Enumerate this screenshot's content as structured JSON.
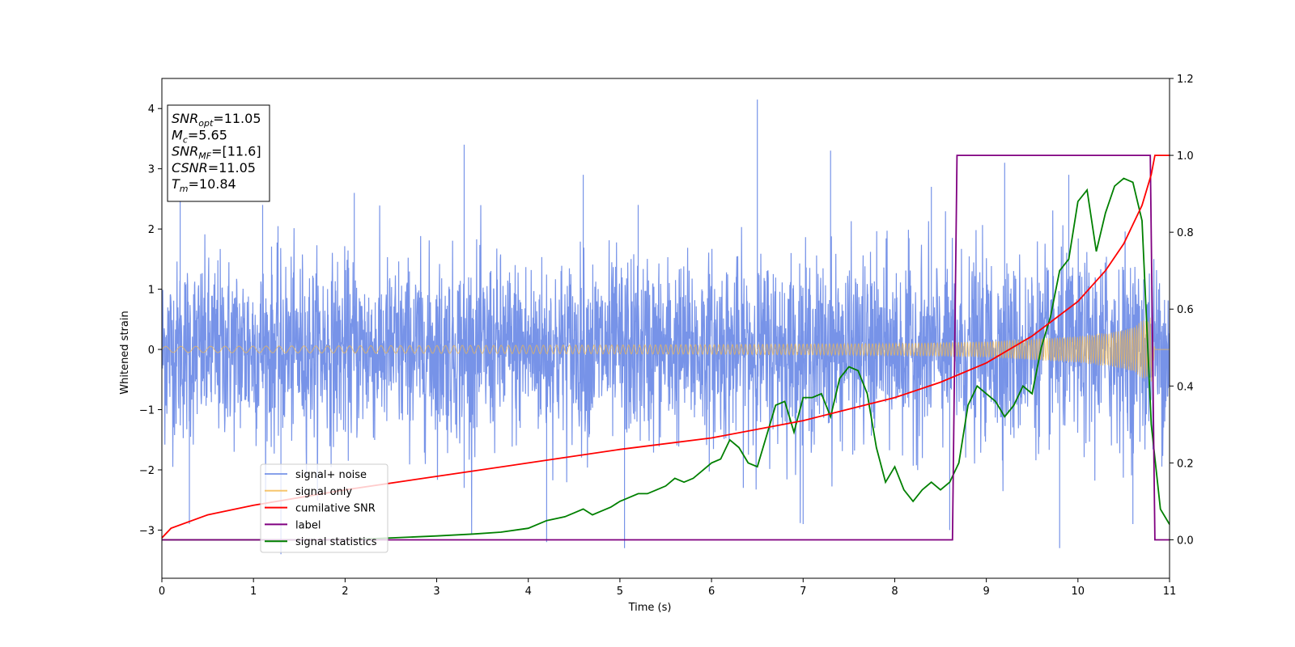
{
  "chart_data": {
    "type": "line",
    "xlabel": "Time (s)",
    "ylabel": "Whitened strain",
    "xlim": [
      0,
      11
    ],
    "ylim": [
      -3.8,
      4.5
    ],
    "y2lim": [
      -0.1,
      1.2
    ],
    "xticks": [
      "0",
      "1",
      "2",
      "3",
      "4",
      "5",
      "6",
      "7",
      "8",
      "9",
      "10",
      "11"
    ],
    "yticks": [
      "−3",
      "−2",
      "−1",
      "0",
      "1",
      "2",
      "3",
      "4"
    ],
    "y2ticks": [
      "0.0",
      "0.2",
      "0.4",
      "0.6",
      "0.8",
      "1.0",
      "1.2"
    ],
    "legend": {
      "placement": "lower-left",
      "entries": [
        "signal+ noise",
        "signal only",
        "cumilative SNR",
        "label",
        "signal statistics"
      ]
    },
    "annotation": {
      "lines": [
        {
          "sym": "SNR",
          "sub": "opt",
          "val": "=11.05"
        },
        {
          "sym": "M",
          "sub": "c",
          "val": "=5.65"
        },
        {
          "sym": "SNR",
          "sub": "MF",
          "val": "=[11.6]"
        },
        {
          "sym": "CSNR",
          "sub": "",
          "val": "=11.05"
        },
        {
          "sym": "T",
          "sub": "m",
          "val": "=10.84"
        }
      ]
    },
    "series": [
      {
        "name": "signal+ noise",
        "axis": "left",
        "color": "#6b8ae6",
        "noise_band": {
          "typical_amplitude": 1.2,
          "max_peak": 4.15,
          "min_trough": -3.4
        },
        "visible_peaks": [
          [
            0.2,
            2.5
          ],
          [
            1.1,
            2.4
          ],
          [
            2.1,
            2.6
          ],
          [
            3.3,
            3.4
          ],
          [
            4.6,
            2.9
          ],
          [
            5.2,
            2.4
          ],
          [
            6.5,
            4.15
          ],
          [
            7.3,
            3.3
          ],
          [
            8.4,
            2.7
          ],
          [
            9.2,
            3.1
          ],
          [
            9.9,
            2.9
          ]
        ],
        "visible_troughs": [
          [
            0.3,
            -2.9
          ],
          [
            1.3,
            -3.4
          ],
          [
            3.3,
            -2.3
          ],
          [
            4.2,
            -3.2
          ],
          [
            5.05,
            -3.3
          ],
          [
            7.0,
            -2.9
          ],
          [
            8.6,
            -3.0
          ],
          [
            9.8,
            -3.3
          ],
          [
            10.6,
            -2.9
          ]
        ]
      },
      {
        "name": "signal only",
        "axis": "left",
        "color": "#f5b94b",
        "envelope": [
          [
            0,
            0.05
          ],
          [
            2,
            0.06
          ],
          [
            4,
            0.07
          ],
          [
            6,
            0.08
          ],
          [
            8,
            0.1
          ],
          [
            9,
            0.13
          ],
          [
            10,
            0.22
          ],
          [
            10.5,
            0.32
          ],
          [
            10.8,
            0.55
          ],
          [
            10.84,
            0.0
          ]
        ]
      },
      {
        "name": "cumilative SNR",
        "axis": "right",
        "color": "#ff0000",
        "x": [
          0,
          0.1,
          0.5,
          1,
          2,
          3,
          4,
          5,
          6,
          7,
          8,
          8.5,
          9,
          9.5,
          10,
          10.3,
          10.5,
          10.7,
          10.8,
          10.84,
          11
        ],
        "y": [
          0.005,
          0.03,
          0.065,
          0.09,
          0.13,
          0.165,
          0.2,
          0.235,
          0.265,
          0.31,
          0.37,
          0.41,
          0.46,
          0.53,
          0.62,
          0.7,
          0.77,
          0.87,
          0.95,
          1.0,
          1.0
        ]
      },
      {
        "name": "label",
        "axis": "right",
        "color": "#800080",
        "x": [
          0,
          8.63,
          8.68,
          10.79,
          10.84,
          11
        ],
        "y": [
          0,
          0,
          1,
          1,
          0,
          0
        ]
      },
      {
        "name": "signal statistics",
        "axis": "right",
        "color": "#008000",
        "x": [
          0,
          1,
          2,
          2.5,
          3,
          3.4,
          3.7,
          4,
          4.2,
          4.4,
          4.5,
          4.6,
          4.7,
          4.8,
          4.9,
          5,
          5.1,
          5.2,
          5.3,
          5.4,
          5.5,
          5.6,
          5.7,
          5.8,
          5.9,
          6,
          6.1,
          6.2,
          6.3,
          6.4,
          6.5,
          6.6,
          6.7,
          6.8,
          6.9,
          7,
          7.1,
          7.2,
          7.3,
          7.4,
          7.5,
          7.6,
          7.7,
          7.8,
          7.9,
          8,
          8.1,
          8.2,
          8.3,
          8.4,
          8.5,
          8.6,
          8.7,
          8.8,
          8.9,
          9,
          9.1,
          9.2,
          9.3,
          9.4,
          9.5,
          9.6,
          9.7,
          9.8,
          9.9,
          10,
          10.1,
          10.2,
          10.3,
          10.4,
          10.5,
          10.6,
          10.7,
          10.8,
          10.9,
          11
        ],
        "y": [
          0,
          0,
          0,
          0.005,
          0.01,
          0.015,
          0.02,
          0.03,
          0.05,
          0.06,
          0.07,
          0.08,
          0.065,
          0.075,
          0.085,
          0.1,
          0.11,
          0.12,
          0.12,
          0.13,
          0.14,
          0.16,
          0.15,
          0.16,
          0.18,
          0.2,
          0.21,
          0.26,
          0.24,
          0.2,
          0.19,
          0.27,
          0.35,
          0.36,
          0.28,
          0.37,
          0.37,
          0.38,
          0.32,
          0.42,
          0.45,
          0.44,
          0.38,
          0.24,
          0.15,
          0.19,
          0.13,
          0.1,
          0.13,
          0.15,
          0.13,
          0.15,
          0.2,
          0.35,
          0.4,
          0.38,
          0.36,
          0.32,
          0.35,
          0.4,
          0.38,
          0.5,
          0.58,
          0.7,
          0.73,
          0.88,
          0.91,
          0.75,
          0.85,
          0.92,
          0.94,
          0.93,
          0.83,
          0.3,
          0.08,
          0.04
        ]
      }
    ]
  }
}
